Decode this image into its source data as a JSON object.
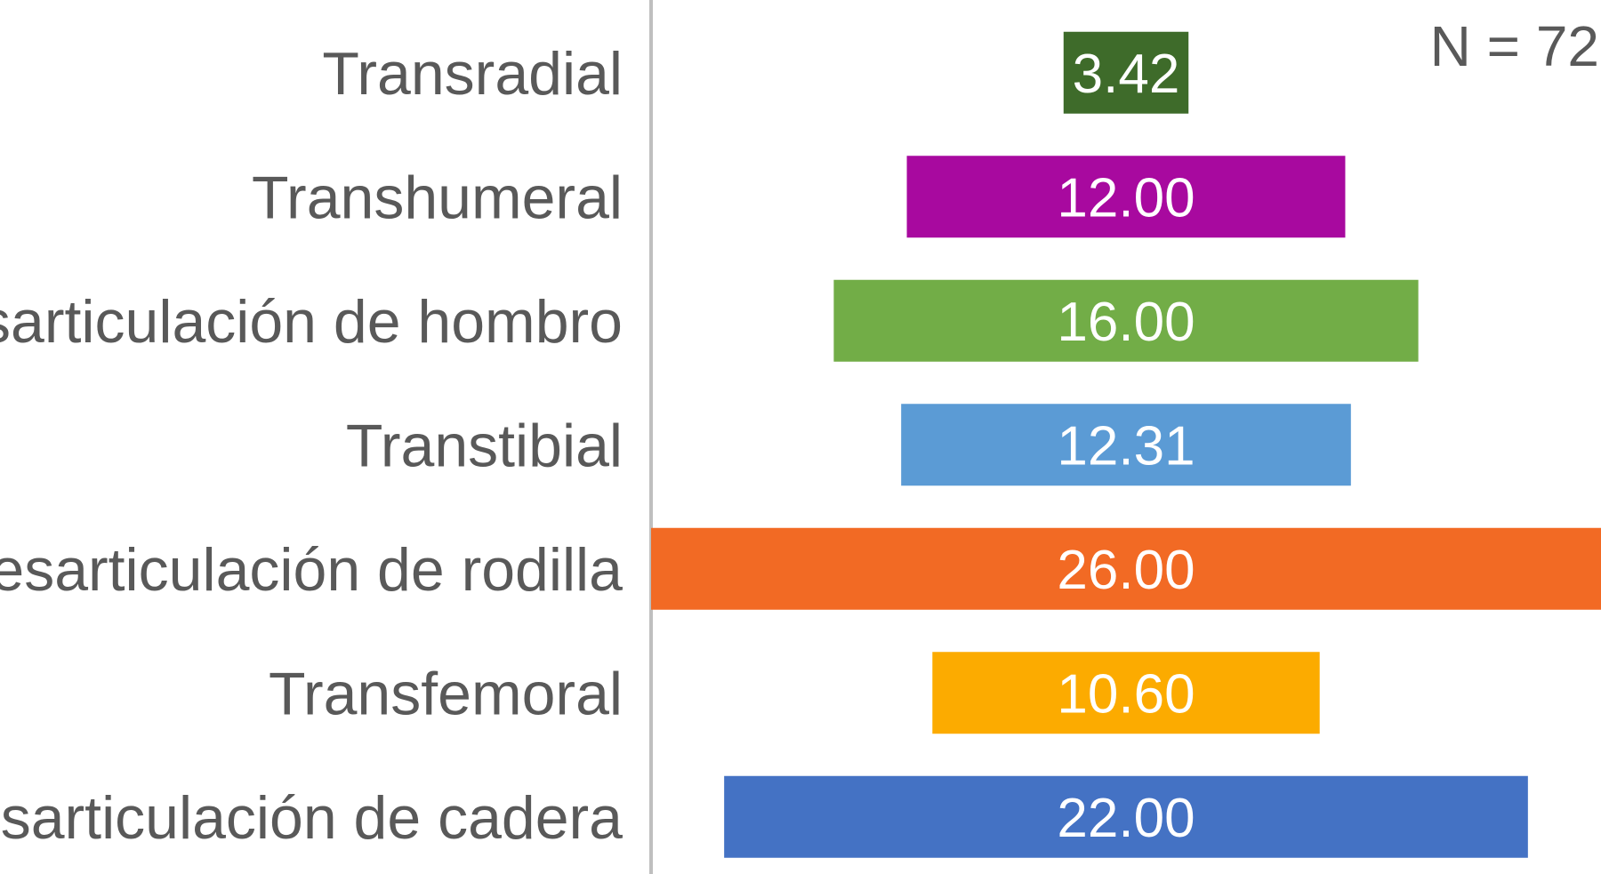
{
  "chart_data": {
    "type": "bar",
    "orientation": "horizontal",
    "annotation": "N = 72",
    "categories": [
      "Transradial",
      "Transhumeral",
      "Desarticulación de hombro",
      "Transtibial",
      "Desarticulación de rodilla",
      "Transfemoral",
      "Desarticulación de cadera"
    ],
    "values": [
      3.42,
      12.0,
      16.0,
      12.31,
      26.0,
      10.6,
      22.0
    ],
    "value_labels": [
      "3.42",
      "12.00",
      "16.00",
      "12.31",
      "26.00",
      "10.60",
      "22.00"
    ],
    "colors": [
      "#3e6b2a",
      "#a8099f",
      "#72ad47",
      "#5b9bd5",
      "#f26a24",
      "#fcab00",
      "#4472c4"
    ],
    "xlim": [
      0,
      26
    ],
    "bar_alignment": "centered",
    "grid": false,
    "legend": "none",
    "axis_line_color": "#bfbfbf"
  }
}
